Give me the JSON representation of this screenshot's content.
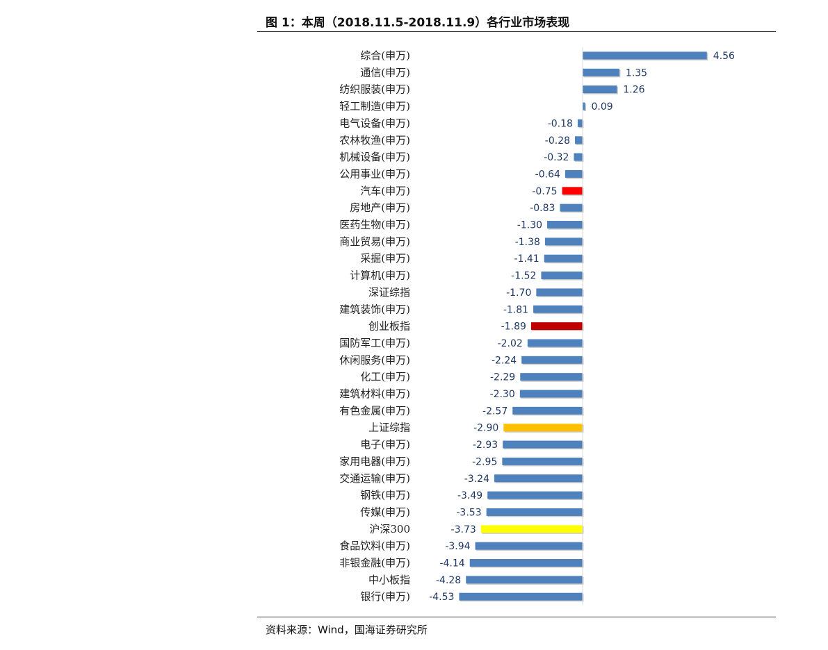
{
  "title": "图 1：本周（2018.11.5-2018.11.9）各行业市场表现",
  "source": "资料来源：Wind，国海证券研究所",
  "chart_data": {
    "type": "bar",
    "orientation": "horizontal",
    "title": "图 1：本周（2018.11.5-2018.11.9）各行业市场表现",
    "xlabel": "",
    "ylabel": "",
    "xlim": [
      -4.6,
      4.6
    ],
    "grid": false,
    "legend": "none",
    "default_color": "#4f81bd",
    "categories": [
      "综合(申万)",
      "通信(申万)",
      "纺织服装(申万)",
      "轻工制造(申万)",
      "电气设备(申万)",
      "农林牧渔(申万)",
      "机械设备(申万)",
      "公用事业(申万)",
      "汽车(申万)",
      "房地产(申万)",
      "医药生物(申万)",
      "商业贸易(申万)",
      "采掘(申万)",
      "计算机(申万)",
      "深证综指",
      "建筑装饰(申万)",
      "创业板指",
      "国防军工(申万)",
      "休闲服务(申万)",
      "化工(申万)",
      "建筑材料(申万)",
      "有色金属(申万)",
      "上证综指",
      "电子(申万)",
      "家用电器(申万)",
      "交通运输(申万)",
      "钢铁(申万)",
      "传媒(申万)",
      "沪深300",
      "食品饮料(申万)",
      "非银金融(申万)",
      "中小板指",
      "银行(申万)"
    ],
    "values": [
      4.56,
      1.35,
      1.26,
      0.09,
      -0.18,
      -0.28,
      -0.32,
      -0.64,
      -0.75,
      -0.83,
      -1.3,
      -1.38,
      -1.41,
      -1.52,
      -1.7,
      -1.81,
      -1.89,
      -2.02,
      -2.24,
      -2.29,
      -2.3,
      -2.57,
      -2.9,
      -2.93,
      -2.95,
      -3.24,
      -3.49,
      -3.53,
      -3.73,
      -3.94,
      -4.14,
      -4.28,
      -4.53
    ],
    "labels": [
      "4.56",
      "1.35",
      "1.26",
      "0.09",
      "-0.18",
      "-0.28",
      "-0.32",
      "-0.64",
      "-0.75",
      "-0.83",
      "-1.30",
      "-1.38",
      "-1.41",
      "-1.52",
      "-1.70",
      "-1.81",
      "-1.89",
      "-2.02",
      "-2.24",
      "-2.29",
      "-2.30",
      "-2.57",
      "-2.90",
      "-2.93",
      "-2.95",
      "-3.24",
      "-3.49",
      "-3.53",
      "-3.73",
      "-3.94",
      "-4.14",
      "-4.28",
      "-4.53"
    ],
    "highlights": {
      "汽车(申万)": "#ff0000",
      "创业板指": "#c00000",
      "上证综指": "#ffc000",
      "沪深300": "#ffff00"
    }
  }
}
